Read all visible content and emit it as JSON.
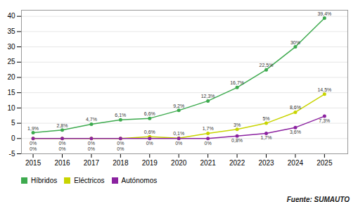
{
  "chart_data": {
    "type": "line",
    "x": [
      2015,
      2016,
      2017,
      2018,
      2019,
      2020,
      2021,
      2022,
      2023,
      2024,
      2025
    ],
    "series": [
      {
        "name": "Híbridos",
        "color": "#3daa4e",
        "marker": "circle",
        "values": [
          1.9,
          2.8,
          4.7,
          6.1,
          6.6,
          9.2,
          12.3,
          16.7,
          22.5,
          30.0,
          39.4
        ],
        "value_labels": [
          "1,9%",
          "2,8%",
          "4,7%",
          "6,1%",
          "6,6%",
          "9,2%",
          "12,3%",
          "16,7%",
          "22,5%",
          "30%",
          "39,4%"
        ]
      },
      {
        "name": "Eléctricos",
        "color": "#c8d400",
        "marker": "circle",
        "values": [
          0.0,
          0.0,
          0.0,
          0.0,
          0.6,
          0.1,
          1.7,
          3.0,
          5.0,
          8.6,
          14.5
        ],
        "value_labels": [
          "0%",
          "0%",
          "0%",
          "0%",
          "0,6%",
          "0,1%",
          "1,7%",
          "3%",
          "5%",
          "8,6%",
          "14,5%"
        ]
      },
      {
        "name": "Autónomos",
        "color": "#8b22a0",
        "marker": "circle",
        "values": [
          0.0,
          0.0,
          0.0,
          0.0,
          0.0,
          0.0,
          0.0,
          0.8,
          1.7,
          3.6,
          7.3
        ],
        "value_labels": [
          "0%",
          "0%",
          "0%",
          "0%",
          "0%",
          "0%",
          "0%",
          "0,8%",
          "1,7%",
          "3,6%",
          "7,3%"
        ]
      }
    ],
    "xlim": [
      2014.6,
      2025.8
    ],
    "xticks": [
      2015,
      2016,
      2017,
      2018,
      2019,
      2020,
      2021,
      2022,
      2023,
      2024,
      2025
    ],
    "ylim": [
      -5,
      42
    ],
    "yticks": [
      -5,
      0,
      5,
      10,
      15,
      20,
      25,
      30,
      35,
      40
    ],
    "grid": "y",
    "legend": "bottom",
    "data_labels": true,
    "annotations": [
      "Fuente: SUMAUTO"
    ]
  }
}
